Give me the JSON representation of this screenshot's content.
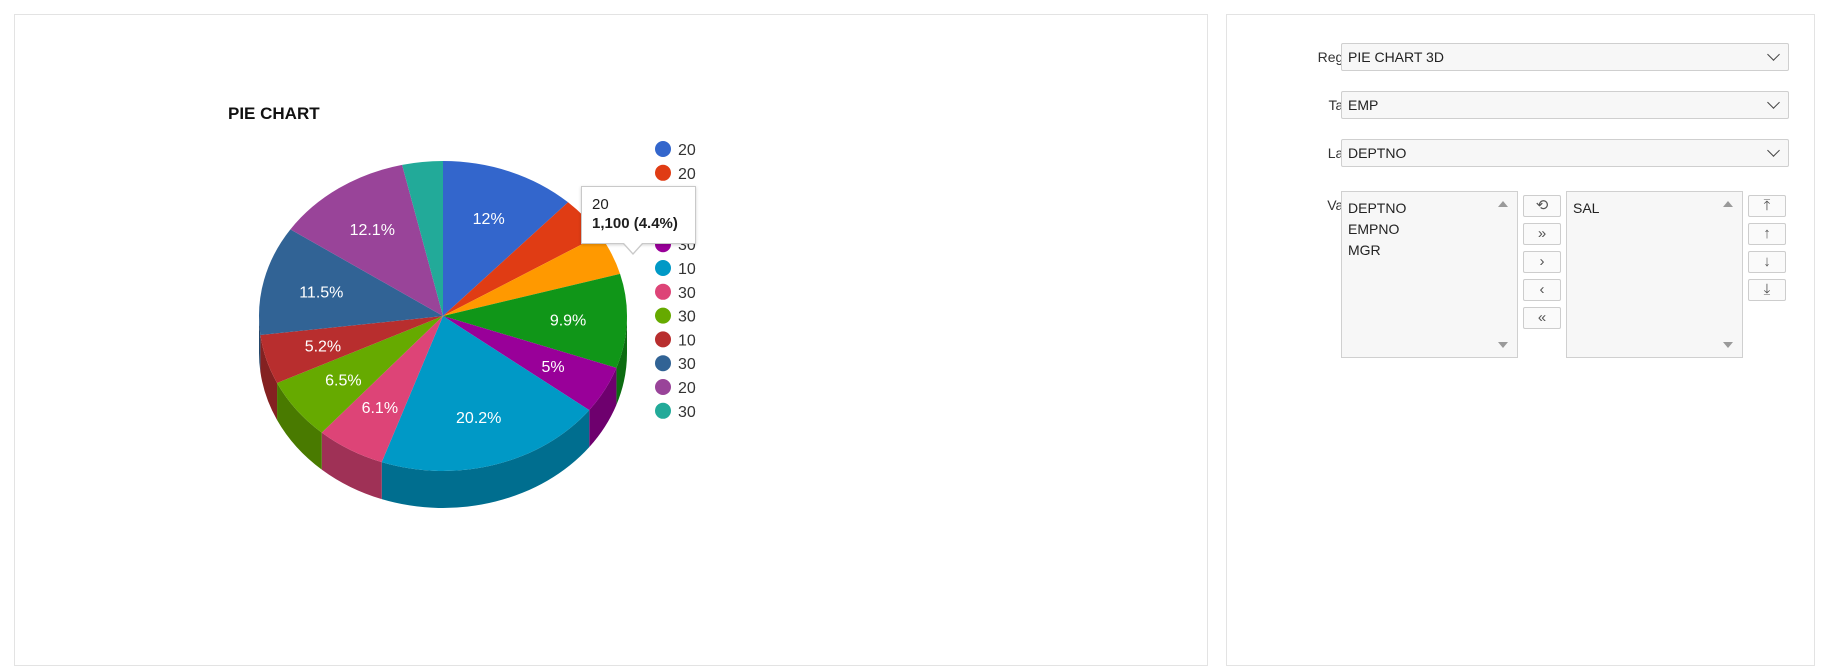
{
  "chart_data": {
    "type": "pie",
    "title": "PIE CHART",
    "slices": [
      {
        "label": "20",
        "percent": 12.0,
        "value_text": "12%",
        "color": "#3366cc"
      },
      {
        "label": "20",
        "percent": 4.4,
        "value_text": "",
        "color": "#e03c14"
      },
      {
        "label": "20",
        "percent": 4.4,
        "value_text": "",
        "color": "#ff9900"
      },
      {
        "label": "10",
        "percent": 9.9,
        "value_text": "9.9%",
        "color": "#109618"
      },
      {
        "label": "30",
        "percent": 5.0,
        "value_text": "5%",
        "color": "#990099"
      },
      {
        "label": "10",
        "percent": 20.2,
        "value_text": "20.2%",
        "color": "#0099c6"
      },
      {
        "label": "30",
        "percent": 6.1,
        "value_text": "6.1%",
        "color": "#dd4477"
      },
      {
        "label": "30",
        "percent": 6.5,
        "value_text": "6.5%",
        "color": "#66aa00"
      },
      {
        "label": "10",
        "percent": 5.2,
        "value_text": "5.2%",
        "color": "#b82e2e"
      },
      {
        "label": "30",
        "percent": 11.5,
        "value_text": "11.5%",
        "color": "#316395"
      },
      {
        "label": "20",
        "percent": 12.1,
        "value_text": "12.1%",
        "color": "#994499"
      },
      {
        "label": "30",
        "percent": 3.6,
        "value_text": "",
        "color": "#22aa99"
      }
    ],
    "legend_position": "right",
    "tooltip": {
      "label": "20",
      "value": "1,100 (4.4%)"
    }
  },
  "form": {
    "region": {
      "label": "Region",
      "value": "PIE CHART 3D"
    },
    "table": {
      "label": "Table",
      "value": "EMP"
    },
    "label_field": {
      "label": "Label",
      "value": "DEPTNO"
    },
    "value_field": {
      "label": "Value",
      "available": [
        "DEPTNO",
        "EMPNO",
        "MGR"
      ],
      "selected": [
        "SAL"
      ]
    },
    "shuttle_buttons": {
      "reset": "⟲",
      "move_all": "»",
      "move": "›",
      "remove": "‹",
      "remove_all": "«"
    },
    "order_buttons": {
      "top": "⤒",
      "up": "↑",
      "down": "↓",
      "bottom": "⤓"
    }
  }
}
